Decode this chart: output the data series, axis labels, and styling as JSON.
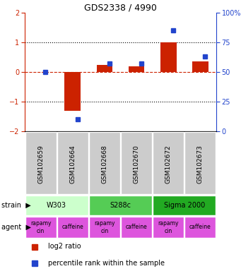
{
  "title": "GDS2338 / 4990",
  "samples": [
    "GSM102659",
    "GSM102664",
    "GSM102668",
    "GSM102670",
    "GSM102672",
    "GSM102673"
  ],
  "log2_ratio": [
    0.0,
    -1.3,
    0.25,
    0.2,
    1.0,
    0.35
  ],
  "percentile": [
    50,
    10,
    57,
    57,
    85,
    63
  ],
  "strains": [
    {
      "label": "W303",
      "start": 0,
      "end": 2,
      "color": "#ccffcc"
    },
    {
      "label": "S288c",
      "start": 2,
      "end": 4,
      "color": "#55cc55"
    },
    {
      "label": "Sigma 2000",
      "start": 4,
      "end": 6,
      "color": "#22aa22"
    }
  ],
  "agent_labels": [
    "rapamycin",
    "caffeine",
    "rapamycin",
    "caffeine",
    "rapamycin",
    "caffeine"
  ],
  "agent_color": "#dd55dd",
  "ylim_left": [
    -2,
    2
  ],
  "ylim_right": [
    0,
    100
  ],
  "yticks_left": [
    -2,
    -1,
    0,
    1,
    2
  ],
  "yticks_right": [
    0,
    25,
    50,
    75,
    100
  ],
  "ytick_labels_right": [
    "0",
    "25",
    "50",
    "75",
    "100%"
  ],
  "bar_color_log2": "#cc2200",
  "bar_color_pct": "#2244cc",
  "zero_line_color": "#cc2200",
  "sample_box_color": "#cccccc",
  "legend_log2": "log2 ratio",
  "legend_pct": "percentile rank within the sample",
  "title_fontsize": 9,
  "axis_fontsize": 7,
  "label_fontsize": 6.5,
  "agent_fontsize": 5.5,
  "strain_fontsize": 7
}
